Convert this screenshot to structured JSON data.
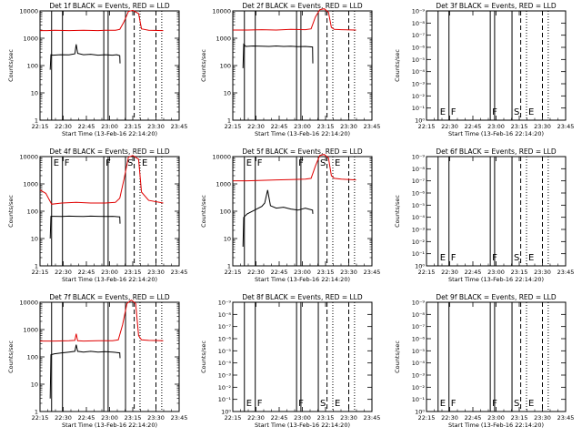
{
  "figure": {
    "xticks": [
      "22:15",
      "22:30",
      "22:45",
      "23:00",
      "23:15",
      "23:30",
      "23:45"
    ],
    "xlabel": "Start Time (13-Feb-16 22:14:20)",
    "ylabel": "Counts/sec",
    "colors": {
      "events": "#000000",
      "lld": "#e00000",
      "axes": "#000000",
      "background": "#ffffff"
    },
    "markers": [
      {
        "t": 8,
        "style": "solid",
        "letter": "E"
      },
      {
        "t": 15.5,
        "style": "solid",
        "letter": "F"
      },
      {
        "t": 44,
        "style": "solid",
        "letter": "F"
      },
      {
        "t": 47,
        "style": "solid",
        "letter": ""
      },
      {
        "t": 59,
        "style": "solid",
        "letter": "S"
      },
      {
        "t": 65,
        "style": "dashed",
        "letter": ""
      },
      {
        "t": 69,
        "style": "dotted",
        "letter": "E"
      },
      {
        "t": 80,
        "style": "dashed",
        "letter": ""
      },
      {
        "t": 84,
        "style": "dotted",
        "letter": ""
      }
    ]
  },
  "chart_data": [
    {
      "type": "line",
      "title": "Det 1f BLACK = Events, RED = LLD",
      "yscale": "log",
      "yticks": [
        "1",
        "10",
        "100",
        "1000",
        "10000"
      ],
      "ylim": [
        1,
        10000
      ],
      "xlim": [
        0,
        96
      ],
      "series": [
        {
          "color": "#e00000",
          "x": [
            0,
            5,
            10,
            20,
            30,
            40,
            45,
            52,
            55,
            58,
            61,
            64,
            68,
            70,
            75,
            85
          ],
          "y": [
            1900,
            1900,
            1950,
            1900,
            1950,
            1900,
            1950,
            1950,
            2100,
            4000,
            9500,
            10500,
            8000,
            2200,
            1950,
            1900
          ]
        },
        {
          "color": "#000000",
          "x": [
            7,
            7.5,
            9,
            14,
            20,
            24,
            25,
            26,
            30,
            35,
            40,
            45,
            50,
            53,
            55,
            55.2
          ],
          "y": [
            70,
            250,
            240,
            250,
            245,
            270,
            600,
            280,
            250,
            260,
            240,
            250,
            240,
            250,
            230,
            120
          ]
        }
      ],
      "letters": false
    },
    {
      "type": "line",
      "title": "Det 2f BLACK = Events, RED = LLD",
      "yscale": "log",
      "yticks": [
        "1",
        "10",
        "100",
        "1000",
        "10000"
      ],
      "ylim": [
        1,
        10000
      ],
      "xlim": [
        0,
        96
      ],
      "series": [
        {
          "color": "#e00000",
          "x": [
            0,
            10,
            20,
            30,
            40,
            50,
            54,
            57,
            60,
            63,
            66,
            68,
            70,
            75,
            85
          ],
          "y": [
            2000,
            2000,
            2050,
            2000,
            2100,
            2050,
            2200,
            6000,
            11000,
            12000,
            9000,
            2500,
            2100,
            2050,
            2000
          ]
        },
        {
          "color": "#000000",
          "x": [
            7,
            7.5,
            9,
            14,
            20,
            25,
            30,
            35,
            40,
            45,
            50,
            55,
            55.2
          ],
          "y": [
            80,
            600,
            500,
            520,
            510,
            500,
            520,
            500,
            510,
            490,
            500,
            480,
            120
          ]
        }
      ],
      "letters": false
    },
    {
      "type": "line",
      "title": "Det 3f BLACK = Events, RED = LLD",
      "yscale": "log",
      "yticks": [
        "10⁰",
        "10⁻¹",
        "10⁻²",
        "10⁻³",
        "10⁻⁴",
        "10⁻⁵",
        "10⁻⁶",
        "10⁻⁷",
        "10⁻⁸",
        "10⁻⁹"
      ],
      "ylim": [
        1e-09,
        1
      ],
      "xlim": [
        0,
        96
      ],
      "series": [],
      "letters": true
    },
    {
      "type": "line",
      "title": "Det 4f BLACK = Events, RED = LLD",
      "yscale": "log",
      "yticks": [
        "1",
        "10",
        "100",
        "1000",
        "10000"
      ],
      "ylim": [
        1,
        10000
      ],
      "xlim": [
        0,
        96
      ],
      "series": [
        {
          "color": "#e00000",
          "x": [
            0,
            4,
            8,
            15,
            25,
            35,
            45,
            52,
            55,
            58,
            61,
            64,
            68,
            70,
            75,
            85
          ],
          "y": [
            600,
            450,
            180,
            200,
            210,
            200,
            200,
            210,
            300,
            1500,
            9500,
            11000,
            8000,
            500,
            250,
            200
          ]
        },
        {
          "color": "#000000",
          "x": [
            7,
            7.5,
            10,
            15,
            20,
            25,
            30,
            35,
            40,
            45,
            50,
            55,
            55.2
          ],
          "y": [
            10,
            65,
            65,
            64,
            66,
            65,
            64,
            66,
            65,
            64,
            65,
            62,
            35
          ]
        }
      ],
      "letters": true
    },
    {
      "type": "line",
      "title": "Det 5f BLACK = Events, RED = LLD",
      "yscale": "log",
      "yticks": [
        "1",
        "10",
        "100",
        "1000",
        "10000"
      ],
      "ylim": [
        1,
        10000
      ],
      "xlim": [
        0,
        96
      ],
      "series": [
        {
          "color": "#e00000",
          "x": [
            0,
            10,
            20,
            30,
            40,
            50,
            54,
            57,
            60,
            63,
            66,
            68,
            70,
            75,
            85
          ],
          "y": [
            1300,
            1300,
            1350,
            1400,
            1450,
            1500,
            1600,
            4500,
            11000,
            12000,
            9000,
            2000,
            1600,
            1500,
            1400
          ]
        },
        {
          "color": "#000000",
          "x": [
            7,
            7.5,
            10,
            15,
            20,
            22,
            24,
            26,
            30,
            35,
            40,
            45,
            50,
            55,
            55.2
          ],
          "y": [
            5,
            60,
            80,
            110,
            150,
            200,
            600,
            160,
            130,
            140,
            120,
            110,
            130,
            110,
            80
          ]
        }
      ],
      "letters": true
    },
    {
      "type": "line",
      "title": "Det 6f BLACK = Events, RED = LLD",
      "yscale": "log",
      "yticks": [
        "10⁰",
        "10⁻¹",
        "10⁻²",
        "10⁻³",
        "10⁻⁴",
        "10⁻⁵",
        "10⁻⁶",
        "10⁻⁷",
        "10⁻⁸",
        "10⁻⁹"
      ],
      "ylim": [
        1e-09,
        1
      ],
      "xlim": [
        0,
        96
      ],
      "series": [],
      "letters": true
    },
    {
      "type": "line",
      "title": "Det 7f BLACK = Events, RED = LLD",
      "yscale": "log",
      "yticks": [
        "1",
        "10",
        "100",
        "1000",
        "10000"
      ],
      "ylim": [
        1,
        10000
      ],
      "xlim": [
        0,
        96
      ],
      "series": [
        {
          "color": "#e00000",
          "x": [
            0,
            10,
            20,
            24,
            25,
            26,
            30,
            40,
            50,
            54,
            57,
            60,
            63,
            66,
            68,
            70,
            75,
            85
          ],
          "y": [
            380,
            380,
            390,
            400,
            700,
            390,
            380,
            390,
            390,
            420,
            1500,
            9000,
            12000,
            9000,
            600,
            420,
            400,
            390
          ]
        },
        {
          "color": "#000000",
          "x": [
            7,
            7.5,
            10,
            15,
            20,
            24,
            25,
            26,
            30,
            35,
            40,
            45,
            50,
            55,
            55.2
          ],
          "y": [
            3,
            120,
            130,
            140,
            150,
            160,
            280,
            160,
            150,
            160,
            150,
            155,
            150,
            140,
            90
          ]
        }
      ],
      "letters": false
    },
    {
      "type": "line",
      "title": "Det 8f BLACK = Events, RED = LLD",
      "yscale": "log",
      "yticks": [
        "10⁰",
        "10⁻¹",
        "10⁻²",
        "10⁻³",
        "10⁻⁴",
        "10⁻⁵",
        "10⁻⁶",
        "10⁻⁷",
        "10⁻⁸",
        "10⁻⁹"
      ],
      "ylim": [
        1e-09,
        1
      ],
      "xlim": [
        0,
        96
      ],
      "series": [],
      "letters": true
    },
    {
      "type": "line",
      "title": "Det 9f BLACK = Events, RED = LLD",
      "yscale": "log",
      "yticks": [
        "10⁰",
        "10⁻¹",
        "10⁻²",
        "10⁻³",
        "10⁻⁴",
        "10⁻⁵",
        "10⁻⁶",
        "10⁻⁷",
        "10⁻⁸",
        "10⁻⁹"
      ],
      "ylim": [
        1e-09,
        1
      ],
      "xlim": [
        0,
        96
      ],
      "series": [],
      "letters": true
    }
  ]
}
